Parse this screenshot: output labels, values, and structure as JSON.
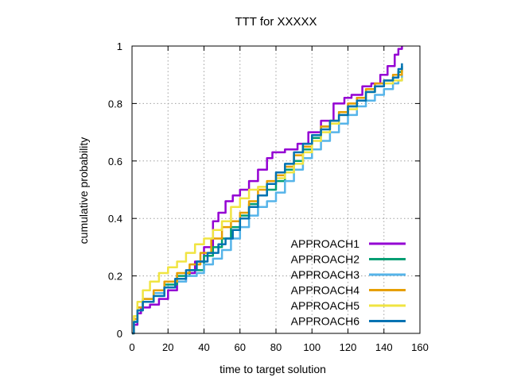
{
  "chart_data": {
    "type": "line",
    "title": "TTT for XXXXX",
    "xlabel": "time to target solution",
    "ylabel": "cumulative probability",
    "xlim": [
      0,
      160
    ],
    "ylim": [
      0,
      1
    ],
    "xticks": [
      0,
      20,
      40,
      60,
      80,
      100,
      120,
      140,
      160
    ],
    "yticks": [
      0,
      0.2,
      0.4,
      0.6,
      0.8,
      1
    ],
    "xtick_labels": [
      "0",
      "20",
      "40",
      "60",
      "80",
      "100",
      "120",
      "140",
      "160"
    ],
    "ytick_labels": [
      "0",
      "0.2",
      "0.4",
      "0.6",
      "0.8",
      "1"
    ],
    "grid": true,
    "legend_position": "bottom-right",
    "series": [
      {
        "name": "APPROACH1",
        "color": "#9400d3",
        "points": [
          [
            0,
            0
          ],
          [
            1,
            0.03
          ],
          [
            3,
            0.07
          ],
          [
            5,
            0.09
          ],
          [
            10,
            0.1
          ],
          [
            15,
            0.12
          ],
          [
            20,
            0.15
          ],
          [
            25,
            0.18
          ],
          [
            30,
            0.21
          ],
          [
            35,
            0.25
          ],
          [
            40,
            0.3
          ],
          [
            45,
            0.39
          ],
          [
            48,
            0.42
          ],
          [
            52,
            0.46
          ],
          [
            56,
            0.48
          ],
          [
            60,
            0.5
          ],
          [
            65,
            0.53
          ],
          [
            70,
            0.57
          ],
          [
            75,
            0.61
          ],
          [
            78,
            0.63
          ],
          [
            85,
            0.64
          ],
          [
            92,
            0.66
          ],
          [
            98,
            0.7
          ],
          [
            105,
            0.74
          ],
          [
            112,
            0.8
          ],
          [
            118,
            0.82
          ],
          [
            122,
            0.83
          ],
          [
            128,
            0.86
          ],
          [
            133,
            0.87
          ],
          [
            138,
            0.9
          ],
          [
            142,
            0.93
          ],
          [
            146,
            0.97
          ],
          [
            148,
            0.99
          ],
          [
            150,
            1.0
          ]
        ]
      },
      {
        "name": "APPROACH2",
        "color": "#009e73",
        "points": [
          [
            0,
            0
          ],
          [
            1,
            0.04
          ],
          [
            3,
            0.08
          ],
          [
            6,
            0.11
          ],
          [
            12,
            0.14
          ],
          [
            18,
            0.17
          ],
          [
            25,
            0.2
          ],
          [
            32,
            0.22
          ],
          [
            40,
            0.27
          ],
          [
            45,
            0.3
          ],
          [
            50,
            0.33
          ],
          [
            55,
            0.37
          ],
          [
            60,
            0.41
          ],
          [
            65,
            0.45
          ],
          [
            70,
            0.48
          ],
          [
            75,
            0.5
          ],
          [
            80,
            0.53
          ],
          [
            85,
            0.57
          ],
          [
            90,
            0.6
          ],
          [
            95,
            0.64
          ],
          [
            100,
            0.68
          ],
          [
            105,
            0.72
          ],
          [
            110,
            0.74
          ],
          [
            115,
            0.77
          ],
          [
            120,
            0.79
          ],
          [
            125,
            0.82
          ],
          [
            130,
            0.84
          ],
          [
            135,
            0.86
          ],
          [
            140,
            0.88
          ],
          [
            145,
            0.89
          ],
          [
            148,
            0.91
          ],
          [
            150,
            0.93
          ]
        ]
      },
      {
        "name": "APPROACH3",
        "color": "#56b4e9",
        "points": [
          [
            0,
            0
          ],
          [
            1,
            0.04
          ],
          [
            3,
            0.09
          ],
          [
            6,
            0.12
          ],
          [
            12,
            0.14
          ],
          [
            18,
            0.16
          ],
          [
            24,
            0.18
          ],
          [
            30,
            0.2
          ],
          [
            36,
            0.21
          ],
          [
            40,
            0.24
          ],
          [
            45,
            0.26
          ],
          [
            50,
            0.29
          ],
          [
            55,
            0.33
          ],
          [
            60,
            0.37
          ],
          [
            65,
            0.41
          ],
          [
            70,
            0.44
          ],
          [
            75,
            0.46
          ],
          [
            80,
            0.49
          ],
          [
            85,
            0.53
          ],
          [
            90,
            0.57
          ],
          [
            95,
            0.61
          ],
          [
            100,
            0.64
          ],
          [
            105,
            0.67
          ],
          [
            110,
            0.7
          ],
          [
            115,
            0.73
          ],
          [
            120,
            0.76
          ],
          [
            125,
            0.79
          ],
          [
            130,
            0.81
          ],
          [
            135,
            0.83
          ],
          [
            140,
            0.85
          ],
          [
            145,
            0.87
          ],
          [
            148,
            0.88
          ],
          [
            150,
            0.9
          ]
        ]
      },
      {
        "name": "APPROACH4",
        "color": "#e69f00",
        "points": [
          [
            0,
            0
          ],
          [
            1,
            0.05
          ],
          [
            3,
            0.09
          ],
          [
            6,
            0.12
          ],
          [
            12,
            0.15
          ],
          [
            18,
            0.18
          ],
          [
            25,
            0.21
          ],
          [
            32,
            0.24
          ],
          [
            38,
            0.28
          ],
          [
            44,
            0.33
          ],
          [
            50,
            0.37
          ],
          [
            55,
            0.39
          ],
          [
            60,
            0.42
          ],
          [
            65,
            0.46
          ],
          [
            70,
            0.5
          ],
          [
            75,
            0.53
          ],
          [
            80,
            0.55
          ],
          [
            85,
            0.58
          ],
          [
            90,
            0.62
          ],
          [
            95,
            0.65
          ],
          [
            100,
            0.69
          ],
          [
            105,
            0.72
          ],
          [
            110,
            0.74
          ],
          [
            115,
            0.77
          ],
          [
            120,
            0.8
          ],
          [
            125,
            0.82
          ],
          [
            130,
            0.85
          ],
          [
            135,
            0.87
          ],
          [
            140,
            0.88
          ],
          [
            145,
            0.9
          ],
          [
            150,
            0.92
          ]
        ]
      },
      {
        "name": "APPROACH5",
        "color": "#f0e442",
        "points": [
          [
            0,
            0
          ],
          [
            1,
            0.06
          ],
          [
            3,
            0.11
          ],
          [
            6,
            0.15
          ],
          [
            10,
            0.18
          ],
          [
            15,
            0.21
          ],
          [
            20,
            0.23
          ],
          [
            25,
            0.25
          ],
          [
            30,
            0.28
          ],
          [
            35,
            0.31
          ],
          [
            40,
            0.33
          ],
          [
            45,
            0.36
          ],
          [
            50,
            0.39
          ],
          [
            55,
            0.44
          ],
          [
            60,
            0.47
          ],
          [
            65,
            0.5
          ],
          [
            70,
            0.51
          ],
          [
            75,
            0.52
          ],
          [
            80,
            0.54
          ],
          [
            85,
            0.56
          ],
          [
            90,
            0.59
          ],
          [
            95,
            0.63
          ],
          [
            100,
            0.67
          ],
          [
            105,
            0.7
          ],
          [
            110,
            0.73
          ],
          [
            115,
            0.76
          ],
          [
            120,
            0.78
          ],
          [
            125,
            0.81
          ],
          [
            130,
            0.84
          ],
          [
            135,
            0.86
          ],
          [
            140,
            0.87
          ],
          [
            145,
            0.88
          ],
          [
            150,
            0.89
          ]
        ]
      },
      {
        "name": "APPROACH6",
        "color": "#0072b2",
        "points": [
          [
            0,
            0
          ],
          [
            1,
            0.04
          ],
          [
            3,
            0.08
          ],
          [
            6,
            0.11
          ],
          [
            12,
            0.13
          ],
          [
            18,
            0.16
          ],
          [
            24,
            0.19
          ],
          [
            30,
            0.22
          ],
          [
            36,
            0.25
          ],
          [
            42,
            0.28
          ],
          [
            48,
            0.31
          ],
          [
            52,
            0.33
          ],
          [
            56,
            0.36
          ],
          [
            60,
            0.4
          ],
          [
            65,
            0.44
          ],
          [
            70,
            0.48
          ],
          [
            75,
            0.52
          ],
          [
            80,
            0.56
          ],
          [
            85,
            0.59
          ],
          [
            90,
            0.63
          ],
          [
            95,
            0.66
          ],
          [
            100,
            0.69
          ],
          [
            105,
            0.71
          ],
          [
            110,
            0.74
          ],
          [
            115,
            0.76
          ],
          [
            120,
            0.79
          ],
          [
            125,
            0.81
          ],
          [
            130,
            0.84
          ],
          [
            135,
            0.86
          ],
          [
            140,
            0.88
          ],
          [
            145,
            0.89
          ],
          [
            148,
            0.92
          ],
          [
            150,
            0.94
          ]
        ]
      }
    ]
  }
}
